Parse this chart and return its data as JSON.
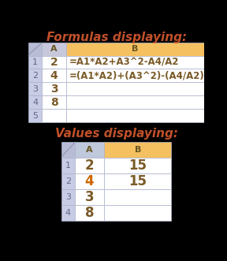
{
  "title1": "Formulas displaying:",
  "title2": "Values displaying:",
  "title_color": "#c0502a",
  "title_fontsize": 11,
  "bg_color": "#000000",
  "header_bg_A_formula": "#c8c8dc",
  "header_bg_A_values": "#c0c8dc",
  "header_bg_B": "#f5c060",
  "corner_bg": "#b8bcd4",
  "row_header_bg": "#c8cce4",
  "cell_bg_white": "#ffffff",
  "cell_border": "#b0b8d0",
  "formula_table": {
    "row_headers": [
      "1",
      "2",
      "3",
      "4",
      "5"
    ],
    "A_values": [
      "2",
      "4",
      "3",
      "8",
      ""
    ],
    "B_values": [
      "=A1*A2+A3^2-A4/A2",
      "=(A1*A2)+(A3^2)-(A4/A2)",
      "",
      "",
      ""
    ],
    "A_color": [
      "#7a5a28",
      "#7a5a28",
      "#7a5a28",
      "#7a5a28",
      ""
    ],
    "B_color": [
      "#7a5a28",
      "#7a5a28",
      "",
      "",
      ""
    ]
  },
  "values_table": {
    "row_headers": [
      "1",
      "2",
      "3",
      "4"
    ],
    "A_values": [
      "2",
      "4",
      "3",
      "8"
    ],
    "B_values": [
      "15",
      "15",
      "",
      ""
    ],
    "A_color": [
      "#7a5a28",
      "#cc6600",
      "#7a5a28",
      "#7a5a28"
    ],
    "B_color": [
      "#7a5a28",
      "#7a5a28",
      "",
      ""
    ]
  }
}
